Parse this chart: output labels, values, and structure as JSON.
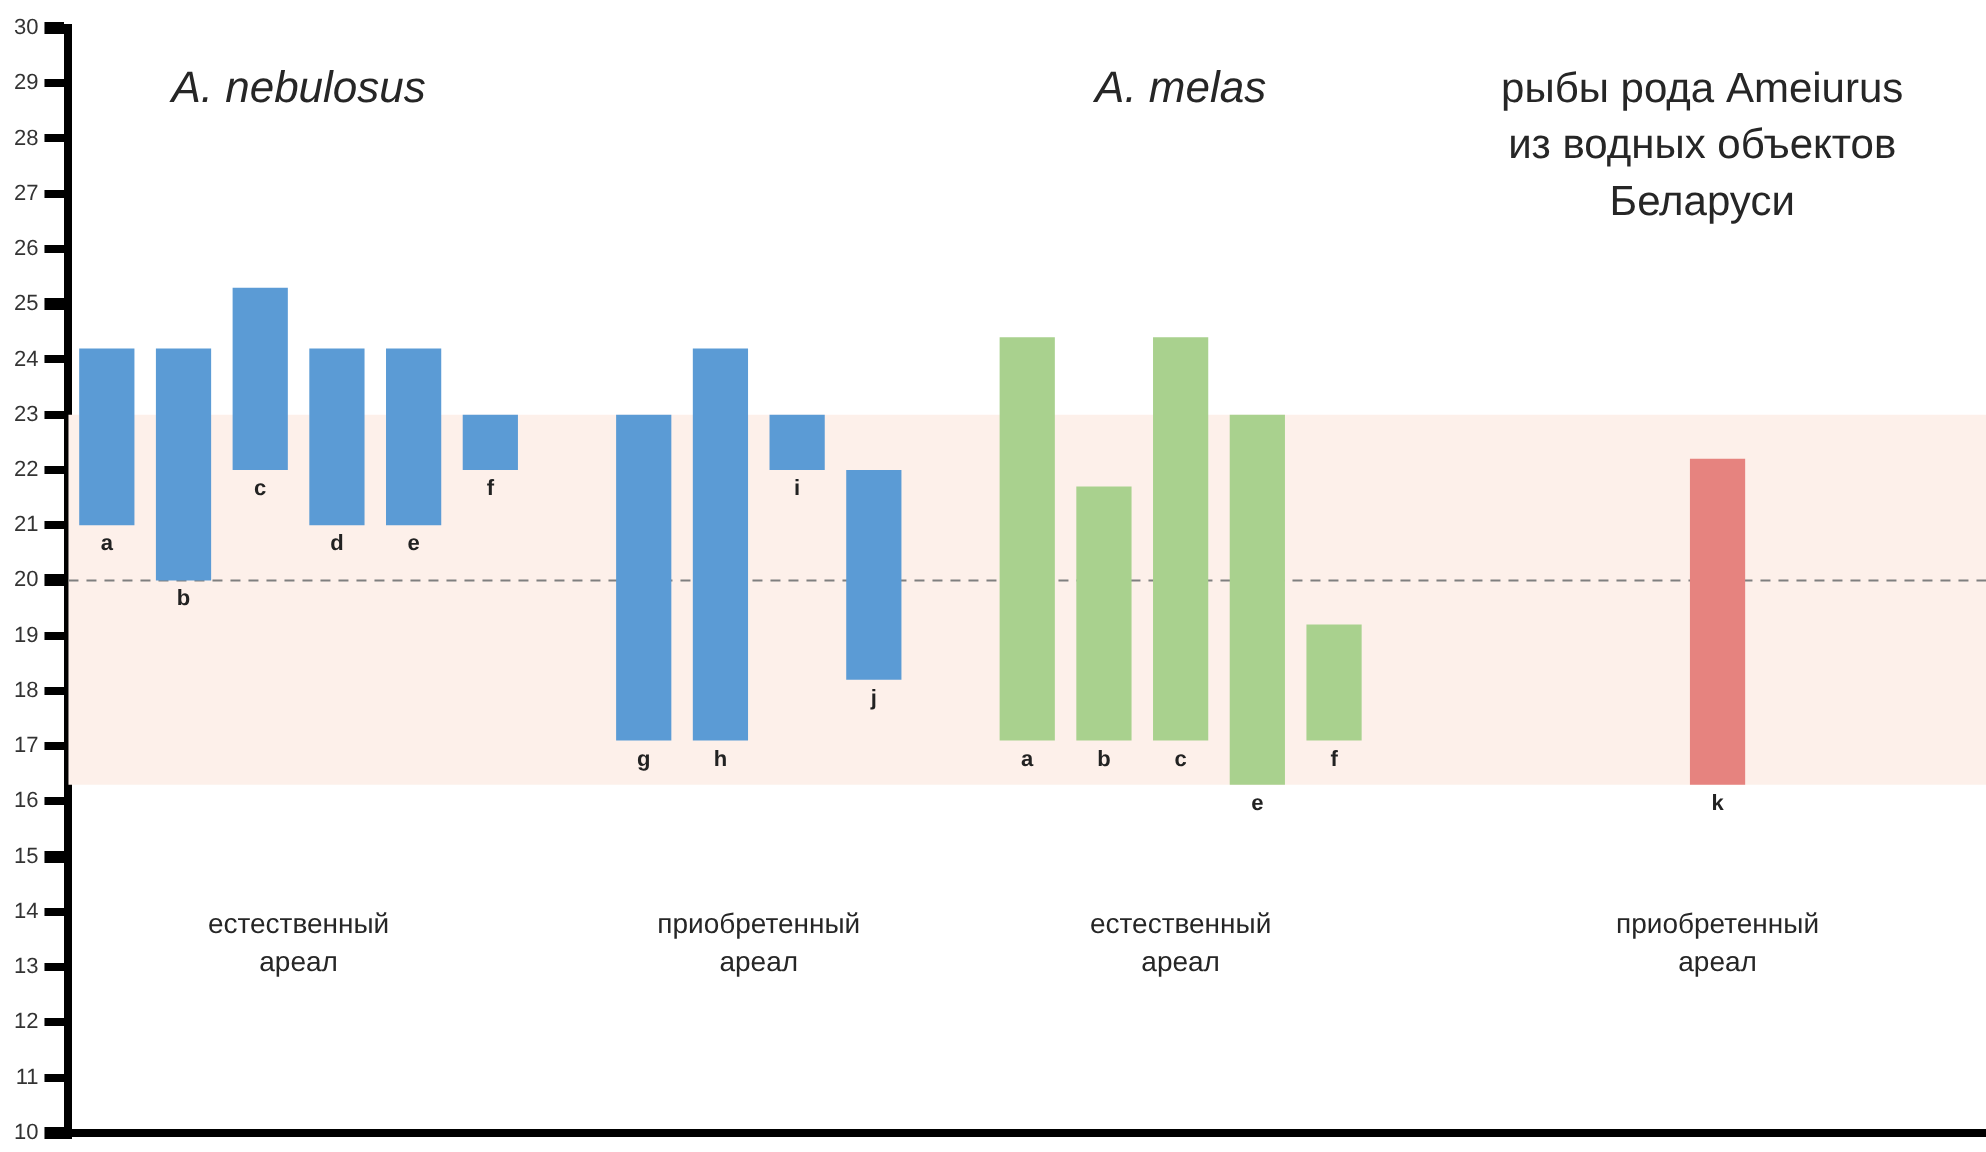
{
  "chart_data": {
    "type": "bar",
    "categories": [
      "a",
      "b",
      "c",
      "d",
      "e",
      "f",
      null,
      "g",
      "h",
      "i",
      "j",
      null,
      "a",
      "b",
      "c",
      "e",
      "f",
      null,
      null,
      null,
      null,
      "k",
      null,
      null,
      null
    ],
    "base": [
      21,
      20,
      22,
      21,
      21,
      22,
      null,
      17.1,
      17.1,
      22,
      18.2,
      null,
      17.1,
      17.1,
      17.1,
      16.3,
      17.1,
      null,
      null,
      null,
      null,
      16.3,
      null,
      null,
      null
    ],
    "values": [
      3.2,
      4.2,
      3.3,
      3.2,
      3.2,
      1,
      null,
      5.9,
      7.1,
      1,
      3.8,
      null,
      7.3,
      4.6,
      7.3,
      6.7,
      2.1,
      null,
      null,
      null,
      null,
      5.9,
      null,
      null,
      null
    ],
    "colors": [
      "#5b9bd5",
      "#5b9bd5",
      "#5b9bd5",
      "#5b9bd5",
      "#5b9bd5",
      "#5b9bd5",
      null,
      "#5b9bd5",
      "#5b9bd5",
      "#5b9bd5",
      "#5b9bd5",
      null,
      "#a9d18e",
      "#a9d18e",
      "#a9d18e",
      "#a9d18e",
      "#a9d18e",
      null,
      null,
      null,
      null,
      "#e6837f",
      null,
      null,
      null
    ],
    "ylim": [
      10,
      30
    ],
    "yticks": [
      10,
      11,
      12,
      13,
      14,
      15,
      16,
      17,
      18,
      19,
      20,
      21,
      22,
      23,
      24,
      25,
      26,
      27,
      28,
      29,
      30
    ],
    "grid": false,
    "legend": false,
    "ref_lines": [
      {
        "axis": "y",
        "value": 20,
        "color": "#7f7f7f",
        "line_style": "dashed"
      }
    ],
    "bands": [
      {
        "axis": "y",
        "from": 16.3,
        "to": 23,
        "color": "#fdf0ea"
      }
    ],
    "annotations": [
      "A. nebulosus",
      "A. melas",
      "рыбы рода Ameiurus из водных объектов Беларуси",
      "естественный ареал",
      "приобретенный ареал",
      "естественный ареал",
      "приобретенный ареал"
    ]
  }
}
